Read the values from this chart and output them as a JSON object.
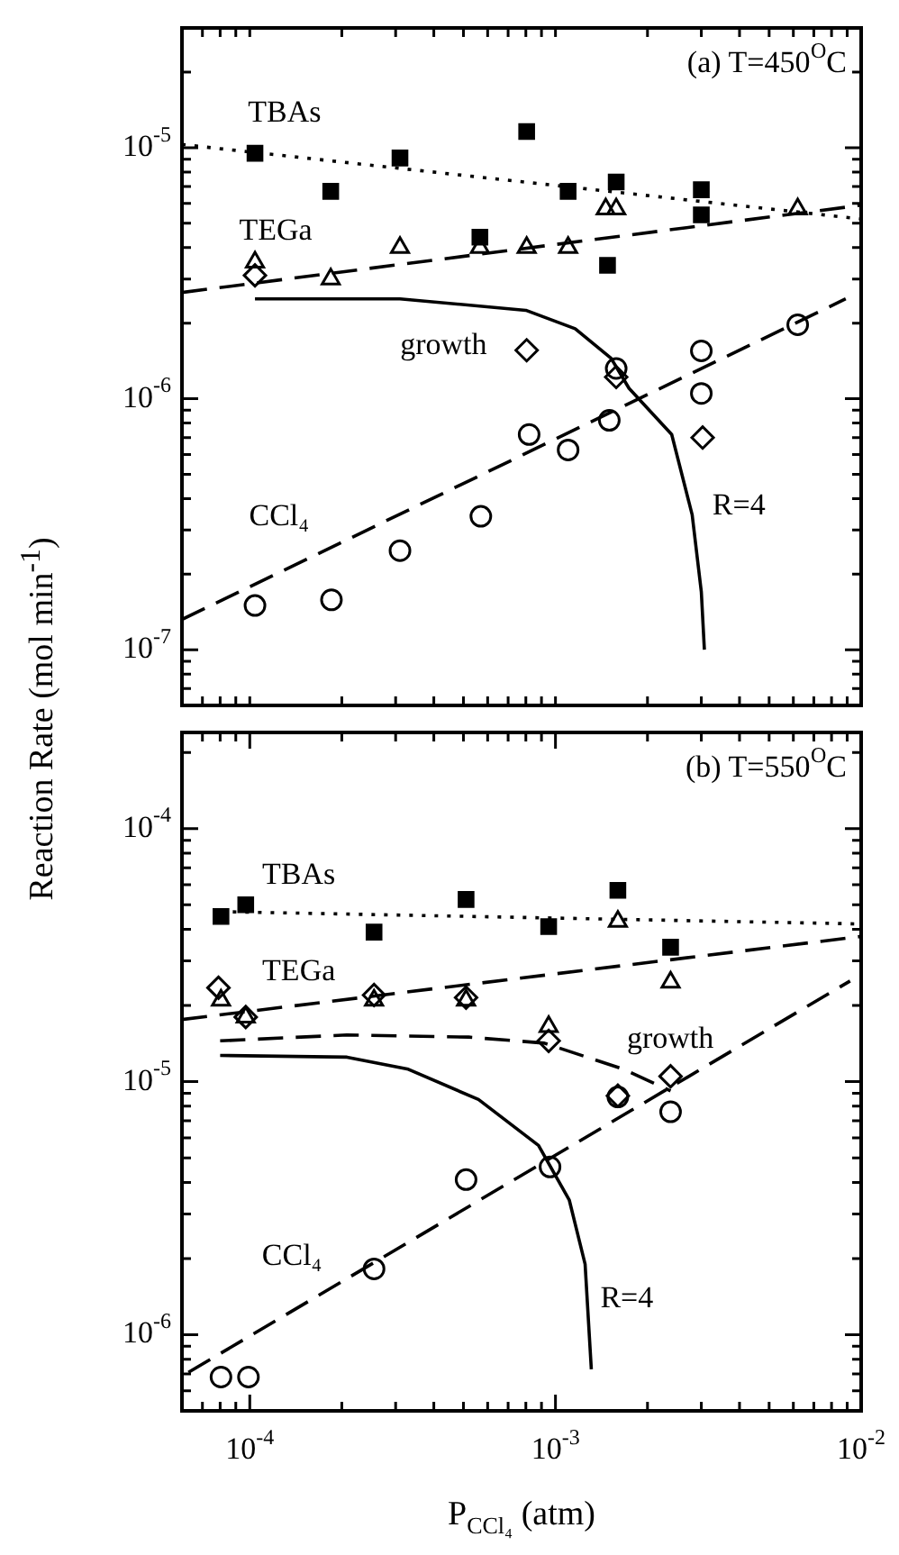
{
  "chart_data": [
    {
      "type": "scatter",
      "title": "(a) T=450$^{O}$C",
      "ylabel": "Reaction Rate (mol min$^{-1}$)",
      "log": "xy",
      "grid": false,
      "legend": false,
      "tick_labels": "y",
      "xlim": [
        6e-05,
        0.01
      ],
      "ylim": [
        6e-08,
        3e-05
      ],
      "xticks": [
        {
          "value": 7e-05,
          "label": null
        },
        {
          "value": 8e-05,
          "label": null
        },
        {
          "value": 9e-05,
          "label": null
        },
        {
          "value": 0.0001,
          "label": null
        },
        {
          "value": 0.0002,
          "label": null
        },
        {
          "value": 0.0003,
          "label": null
        },
        {
          "value": 0.0004,
          "label": null
        },
        {
          "value": 0.0005,
          "label": null
        },
        {
          "value": 0.0006,
          "label": null
        },
        {
          "value": 0.0007,
          "label": null
        },
        {
          "value": 0.0008,
          "label": null
        },
        {
          "value": 0.0009,
          "label": null
        },
        {
          "value": 0.001,
          "label": null
        },
        {
          "value": 0.002,
          "label": null
        },
        {
          "value": 0.003,
          "label": null
        },
        {
          "value": 0.004,
          "label": null
        },
        {
          "value": 0.005,
          "label": null
        },
        {
          "value": 0.006,
          "label": null
        },
        {
          "value": 0.007,
          "label": null
        },
        {
          "value": 0.008,
          "label": null
        },
        {
          "value": 0.009,
          "label": null
        },
        {
          "value": 0.01,
          "label": null
        }
      ],
      "yticks": [
        {
          "value": 7e-08,
          "label": null
        },
        {
          "value": 8e-08,
          "label": null
        },
        {
          "value": 9e-08,
          "label": null
        },
        {
          "value": 1e-07,
          "label": "10$^{-7}$"
        },
        {
          "value": 2e-07,
          "label": null
        },
        {
          "value": 3e-07,
          "label": null
        },
        {
          "value": 4e-07,
          "label": null
        },
        {
          "value": 5e-07,
          "label": null
        },
        {
          "value": 6e-07,
          "label": null
        },
        {
          "value": 7e-07,
          "label": null
        },
        {
          "value": 8e-07,
          "label": null
        },
        {
          "value": 9e-07,
          "label": null
        },
        {
          "value": 1e-06,
          "label": "10$^{-6}$"
        },
        {
          "value": 2e-06,
          "label": null
        },
        {
          "value": 3e-06,
          "label": null
        },
        {
          "value": 4e-06,
          "label": null
        },
        {
          "value": 5e-06,
          "label": null
        },
        {
          "value": 6e-06,
          "label": null
        },
        {
          "value": 7e-06,
          "label": null
        },
        {
          "value": 8e-06,
          "label": null
        },
        {
          "value": 9e-06,
          "label": null
        },
        {
          "value": 1e-05,
          "label": "10$^{-5}$"
        },
        {
          "value": 2e-05,
          "label": null
        }
      ],
      "series": [
        {
          "type": "scatter",
          "marker": "square",
          "color": "#000000",
          "x": [
            0.000104,
            0.000184,
            0.00031,
            0.000566,
            0.000805,
            0.0011,
            0.00148,
            0.00158,
            0.003,
            0.003
          ],
          "values": [
            9.5e-06,
            6.7e-06,
            9.1e-06,
            4.4e-06,
            1.16e-05,
            6.7e-06,
            3.4e-06,
            7.3e-06,
            6.8e-06,
            5.4e-06
          ]
        },
        {
          "type": "scatter",
          "marker": "triangle",
          "color": "#000000",
          "x": [
            0.000104,
            0.000184,
            0.00031,
            0.000566,
            0.000805,
            0.0011,
            0.00146,
            0.00158,
            0.003,
            0.0062
          ],
          "values": [
            3.5e-06,
            3e-06,
            4e-06,
            4e-06,
            4e-06,
            4e-06,
            5.7e-06,
            5.7e-06,
            null,
            5.7e-06
          ]
        },
        {
          "type": "scatter",
          "marker": "diamond",
          "color": "#000000",
          "x": [
            0.000104,
            0.000805,
            0.00158,
            0.00303
          ],
          "values": [
            3.1e-06,
            1.56e-06,
            1.22e-06,
            7e-07
          ]
        },
        {
          "type": "scatter",
          "marker": "circle",
          "color": "#000000",
          "x": [
            0.000104,
            0.000185,
            0.00031,
            0.00057,
            0.00082,
            0.0011,
            0.0015,
            0.00158,
            0.003,
            0.003,
            0.0062
          ],
          "values": [
            1.5e-07,
            1.58e-07,
            2.48e-07,
            3.4e-07,
            7.2e-07,
            6.25e-07,
            8.2e-07,
            1.32e-06,
            1.05e-06,
            1.55e-06,
            1.97e-06
          ]
        },
        {
          "type": "line",
          "marker": "none",
          "line_style": "dotted",
          "color": "#000000",
          "x": [
            6e-05,
            0.01
          ],
          "values": [
            1.03e-05,
            5.2e-06
          ]
        },
        {
          "type": "line",
          "marker": "none",
          "line_style": "dashed",
          "color": "#000000",
          "x": [
            6e-05,
            0.01
          ],
          "values": [
            2.65e-06,
            5.9e-06
          ]
        },
        {
          "type": "line",
          "marker": "none",
          "line_style": "dashed",
          "color": "#000000",
          "x": [
            6e-05,
            0.0089
          ],
          "values": [
            1.32e-07,
            2.5e-06
          ]
        },
        {
          "type": "line",
          "marker": "none",
          "line_style": "solid",
          "color": "#000000",
          "x": [
            0.000104,
            0.00031,
            0.0008,
            0.00116,
            0.00152,
            0.00174,
            0.0024,
            0.0028,
            0.003,
            0.00307
          ],
          "values": [
            2.5e-06,
            2.5e-06,
            2.25e-06,
            1.9e-06,
            1.45e-06,
            1.1e-06,
            7.2e-07,
            3.45e-07,
            1.7e-07,
            1e-07
          ]
        }
      ],
      "annotations": [
        "TBAs",
        "TEGa",
        "growth",
        "CCl₄",
        "R=4"
      ]
    },
    {
      "type": "scatter",
      "title": "(b) T=550$^{O}$C",
      "xlabel": "P$_{CCl₄}$ (atm)",
      "log": "xy",
      "grid": false,
      "legend": false,
      "xlim": [
        6e-05,
        0.01
      ],
      "ylim": [
        5e-07,
        0.00024
      ],
      "xticks": [
        {
          "value": 7e-05,
          "label": null
        },
        {
          "value": 8e-05,
          "label": null
        },
        {
          "value": 9e-05,
          "label": null
        },
        {
          "value": 0.0001,
          "label": "10$^{-4}$"
        },
        {
          "value": 0.0002,
          "label": null
        },
        {
          "value": 0.0003,
          "label": null
        },
        {
          "value": 0.0004,
          "label": null
        },
        {
          "value": 0.0005,
          "label": null
        },
        {
          "value": 0.0006,
          "label": null
        },
        {
          "value": 0.0007,
          "label": null
        },
        {
          "value": 0.0008,
          "label": null
        },
        {
          "value": 0.0009,
          "label": null
        },
        {
          "value": 0.001,
          "label": "10$^{-3}$"
        },
        {
          "value": 0.002,
          "label": null
        },
        {
          "value": 0.003,
          "label": null
        },
        {
          "value": 0.004,
          "label": null
        },
        {
          "value": 0.005,
          "label": null
        },
        {
          "value": 0.006,
          "label": null
        },
        {
          "value": 0.007,
          "label": null
        },
        {
          "value": 0.008,
          "label": null
        },
        {
          "value": 0.009,
          "label": null
        },
        {
          "value": 0.01,
          "label": "10$^{-2}$"
        }
      ],
      "yticks": [
        {
          "value": 6e-07,
          "label": null
        },
        {
          "value": 7e-07,
          "label": null
        },
        {
          "value": 8e-07,
          "label": null
        },
        {
          "value": 9e-07,
          "label": null
        },
        {
          "value": 1e-06,
          "label": "10$^{-6}$"
        },
        {
          "value": 2e-06,
          "label": null
        },
        {
          "value": 3e-06,
          "label": null
        },
        {
          "value": 4e-06,
          "label": null
        },
        {
          "value": 5e-06,
          "label": null
        },
        {
          "value": 6e-06,
          "label": null
        },
        {
          "value": 7e-06,
          "label": null
        },
        {
          "value": 8e-06,
          "label": null
        },
        {
          "value": 9e-06,
          "label": null
        },
        {
          "value": 1e-05,
          "label": "10$^{-5}$"
        },
        {
          "value": 2e-05,
          "label": null
        },
        {
          "value": 3e-05,
          "label": null
        },
        {
          "value": 4e-05,
          "label": null
        },
        {
          "value": 5e-05,
          "label": null
        },
        {
          "value": 6e-05,
          "label": null
        },
        {
          "value": 7e-05,
          "label": null
        },
        {
          "value": 8e-05,
          "label": null
        },
        {
          "value": 9e-05,
          "label": null
        },
        {
          "value": 0.0001,
          "label": "10$^{-4}$"
        },
        {
          "value": 0.0002,
          "label": null
        }
      ],
      "series": [
        {
          "type": "scatter",
          "marker": "square",
          "color": "#000000",
          "x": [
            8.05e-05,
            9.7e-05,
            0.000255,
            0.00051,
            0.00095,
            0.0016,
            0.00238
          ],
          "values": [
            4.5e-05,
            5e-05,
            3.9e-05,
            5.25e-05,
            4.1e-05,
            5.7e-05,
            3.4e-05
          ]
        },
        {
          "type": "scatter",
          "marker": "triangle",
          "color": "#000000",
          "x": [
            8.05e-05,
            9.7e-05,
            0.000255,
            0.00051,
            0.00095,
            0.0016,
            0.00238
          ],
          "values": [
            2.1e-05,
            1.8e-05,
            2.1e-05,
            2.1e-05,
            1.65e-05,
            4.3e-05,
            2.47e-05
          ]
        },
        {
          "type": "scatter",
          "marker": "diamond",
          "color": "#000000",
          "x": [
            7.9e-05,
            9.7e-05,
            0.000255,
            0.00051,
            0.00095,
            0.0016,
            0.00238
          ],
          "values": [
            2.35e-05,
            1.8e-05,
            2.2e-05,
            2.15e-05,
            1.45e-05,
            8.8e-06,
            1.05e-05
          ]
        },
        {
          "type": "scatter",
          "marker": "circle",
          "color": "#000000",
          "x": [
            8.05e-05,
            9.9e-05,
            0.000255,
            0.00051,
            0.00096,
            0.0016,
            0.00238
          ],
          "values": [
            6.8e-07,
            6.8e-07,
            1.82e-06,
            4.1e-06,
            4.6e-06,
            8.7e-06,
            7.6e-06
          ]
        },
        {
          "type": "line",
          "marker": "none",
          "line_style": "dotted",
          "color": "#000000",
          "x": [
            8e-05,
            0.01
          ],
          "values": [
            4.7e-05,
            4.2e-05
          ]
        },
        {
          "type": "line",
          "marker": "none",
          "line_style": "dashed",
          "color": "#000000",
          "x": [
            6e-05,
            0.01
          ],
          "values": [
            1.76e-05,
            3.75e-05
          ]
        },
        {
          "type": "line",
          "marker": "none",
          "line_style": "dashed",
          "color": "#000000",
          "x": [
            8e-05,
            0.000208,
            0.00052,
            0.00092,
            0.00167,
            0.00238
          ],
          "values": [
            1.45e-05,
            1.53e-05,
            1.5e-05,
            1.42e-05,
            1.12e-05,
            9.2e-06
          ]
        },
        {
          "type": "line",
          "marker": "none",
          "line_style": "dashed",
          "color": "#000000",
          "x": [
            6.3e-05,
            0.0092
          ],
          "values": [
            7.1e-07,
            2.5e-05
          ]
        },
        {
          "type": "line",
          "marker": "none",
          "line_style": "solid",
          "color": "#000000",
          "x": [
            8e-05,
            0.000208,
            0.00033,
            0.00056,
            0.00088,
            0.00111,
            0.00125,
            0.00131
          ],
          "values": [
            1.27e-05,
            1.25e-05,
            1.12e-05,
            8.5e-06,
            5.6e-06,
            3.4e-06,
            1.9e-06,
            7.3e-07
          ]
        }
      ],
      "annotations": [
        "TBAs",
        "TEGa",
        "growth",
        "CCl₄",
        "R=4"
      ]
    }
  ]
}
